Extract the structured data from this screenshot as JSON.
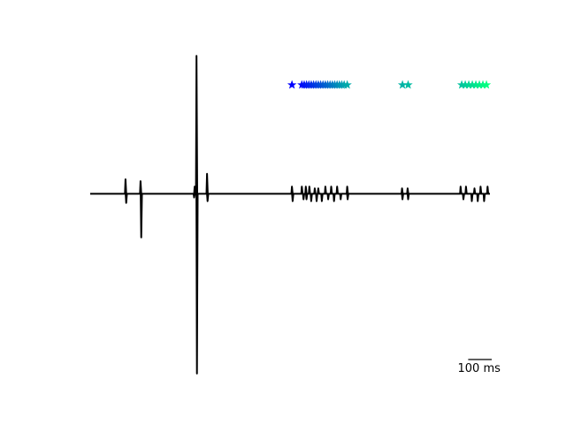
{
  "chart_data": {
    "type": "line",
    "title": "",
    "xlabel": "",
    "ylabel": "",
    "axes_visible": false,
    "grid": false,
    "xlim": [
      0,
      1700
    ],
    "ylim": [
      -1.0,
      0.8
    ],
    "trace": {
      "color": "#000000",
      "baseline": 0,
      "spikes": [
        {
          "t": 150,
          "amp": 0.08,
          "sign": 1
        },
        {
          "t": 153,
          "amp": 0.05,
          "sign": -1
        },
        {
          "t": 214,
          "amp": 0.07,
          "sign": 1
        },
        {
          "t": 217,
          "amp": 0.24,
          "sign": -1
        },
        {
          "t": 442,
          "amp": 0.02,
          "sign": -1
        },
        {
          "t": 444,
          "amp": 0.04,
          "sign": 1
        },
        {
          "t": 452,
          "amp": 0.76,
          "sign": 1
        },
        {
          "t": 454,
          "amp": 0.99,
          "sign": -1
        },
        {
          "t": 497,
          "amp": 0.11,
          "sign": 1
        },
        {
          "t": 499,
          "amp": 0.04,
          "sign": -1
        },
        {
          "t": 858,
          "amp": 0.04,
          "sign": 1
        },
        {
          "t": 861,
          "amp": 0.04,
          "sign": -1
        },
        {
          "t": 900,
          "amp": 0.04,
          "sign": 1
        },
        {
          "t": 907,
          "amp": 0.03,
          "sign": -1
        },
        {
          "t": 917,
          "amp": 0.04,
          "sign": 1
        },
        {
          "t": 920,
          "amp": 0.03,
          "sign": -1
        },
        {
          "t": 932,
          "amp": 0.04,
          "sign": 1
        },
        {
          "t": 940,
          "amp": 0.04,
          "sign": -1
        },
        {
          "t": 955,
          "amp": 0.03,
          "sign": 1
        },
        {
          "t": 963,
          "amp": 0.04,
          "sign": -1
        },
        {
          "t": 970,
          "amp": 0.03,
          "sign": 1
        },
        {
          "t": 985,
          "amp": 0.04,
          "sign": -1
        },
        {
          "t": 1000,
          "amp": 0.04,
          "sign": 1
        },
        {
          "t": 1012,
          "amp": 0.03,
          "sign": -1
        },
        {
          "t": 1025,
          "amp": 0.04,
          "sign": 1
        },
        {
          "t": 1037,
          "amp": 0.04,
          "sign": -1
        },
        {
          "t": 1050,
          "amp": 0.04,
          "sign": 1
        },
        {
          "t": 1065,
          "amp": 0.03,
          "sign": -1
        },
        {
          "t": 1093,
          "amp": 0.04,
          "sign": 1
        },
        {
          "t": 1095,
          "amp": 0.03,
          "sign": -1
        },
        {
          "t": 1326,
          "amp": 0.03,
          "sign": 1
        },
        {
          "t": 1328,
          "amp": 0.03,
          "sign": -1
        },
        {
          "t": 1350,
          "amp": 0.03,
          "sign": 1
        },
        {
          "t": 1352,
          "amp": 0.03,
          "sign": -1
        },
        {
          "t": 1575,
          "amp": 0.04,
          "sign": 1
        },
        {
          "t": 1587,
          "amp": 0.03,
          "sign": -1
        },
        {
          "t": 1598,
          "amp": 0.04,
          "sign": 1
        },
        {
          "t": 1623,
          "amp": 0.04,
          "sign": -1
        },
        {
          "t": 1634,
          "amp": 0.03,
          "sign": 1
        },
        {
          "t": 1648,
          "amp": 0.04,
          "sign": -1
        },
        {
          "t": 1660,
          "amp": 0.04,
          "sign": 1
        },
        {
          "t": 1675,
          "amp": 0.04,
          "sign": -1
        },
        {
          "t": 1690,
          "amp": 0.04,
          "sign": 1
        }
      ]
    },
    "markers": {
      "shape": "star",
      "y": 0.6,
      "color_start": "#0000ff",
      "color_end": "#00ff80",
      "t": [
        858,
        900,
        910,
        920,
        930,
        940,
        950,
        960,
        970,
        980,
        990,
        1000,
        1010,
        1020,
        1030,
        1040,
        1050,
        1060,
        1070,
        1080,
        1093,
        1328,
        1352,
        1580,
        1595,
        1610,
        1625,
        1640,
        1655,
        1670,
        1685
      ]
    },
    "scale_bar": {
      "length": 100,
      "label": "100 ms"
    }
  }
}
